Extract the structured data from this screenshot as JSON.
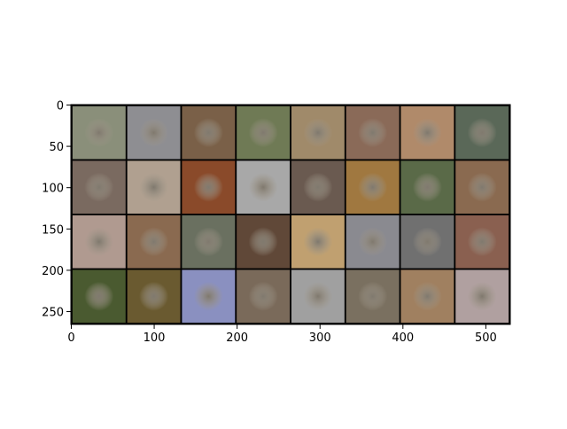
{
  "chart_data": {
    "type": "image",
    "xlim": [
      -0.5,
      529.5
    ],
    "ylim": [
      265.5,
      -0.5
    ],
    "xticks": [
      0,
      100,
      200,
      300,
      400,
      500
    ],
    "yticks": [
      0,
      50,
      100,
      150,
      200,
      250
    ]
  }
}
